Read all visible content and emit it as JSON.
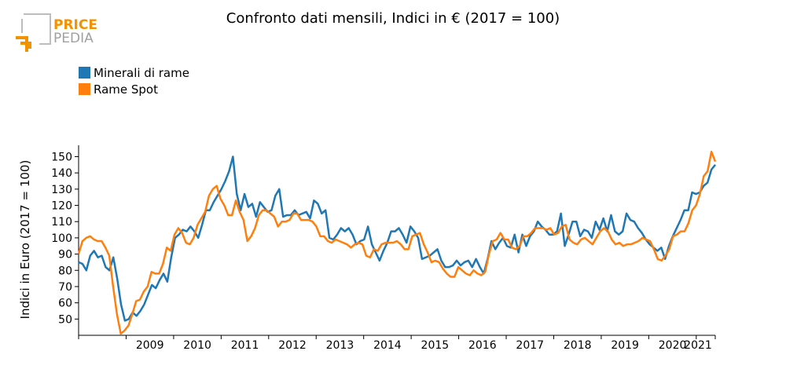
{
  "logo": {
    "line1": "PRICE",
    "line2": "PEDIA",
    "colors": {
      "orange": "#F39200",
      "gray": "#A0A0A0"
    }
  },
  "chart_data": {
    "type": "line",
    "title": "Confronto dati mensili, Indici in € (2017 = 100)",
    "ylabel": "Indici in Euro (2017 = 100)",
    "xlabel": "",
    "ylim": [
      40,
      157
    ],
    "xlim": [
      2008.0,
      2021.4
    ],
    "yticks": [
      50,
      60,
      70,
      80,
      90,
      100,
      110,
      120,
      130,
      140,
      150
    ],
    "xtick_labels": [
      "2009",
      "2010",
      "2011",
      "2012",
      "2013",
      "2014",
      "2015",
      "2016",
      "2017",
      "2018",
      "2019",
      "2020",
      "2021"
    ],
    "legend_position": "top-left",
    "x_start": "2008-01",
    "x_step": "1 month",
    "series": [
      {
        "name": "Minerali di rame",
        "color": "#1F77B4",
        "values": [
          85,
          84,
          80,
          89,
          92,
          88,
          89,
          82,
          80,
          88,
          75,
          59,
          49,
          50,
          54,
          52,
          55,
          59,
          65,
          71,
          69,
          74,
          78,
          73,
          88,
          100,
          102,
          105,
          104,
          107,
          104,
          100,
          108,
          117,
          117,
          122,
          126,
          130,
          135,
          141,
          150,
          127,
          117,
          127,
          119,
          121,
          113,
          122,
          119,
          116,
          117,
          126,
          130,
          113,
          114,
          114,
          117,
          114,
          115,
          116,
          112,
          123,
          121,
          115,
          117,
          100,
          99,
          102,
          106,
          104,
          106,
          102,
          96,
          98,
          99,
          107,
          96,
          91,
          86,
          92,
          97,
          104,
          104,
          106,
          102,
          97,
          107,
          104,
          100,
          87,
          88,
          89,
          91,
          93,
          86,
          82,
          82,
          83,
          86,
          83,
          85,
          86,
          82,
          87,
          82,
          78,
          87,
          98,
          93,
          97,
          100,
          95,
          94,
          102,
          91,
          102,
          95,
          101,
          104,
          110,
          107,
          105,
          102,
          102,
          104,
          115,
          95,
          102,
          110,
          110,
          101,
          105,
          104,
          100,
          110,
          105,
          112,
          104,
          114,
          104,
          102,
          104,
          115,
          111,
          110,
          106,
          103,
          99,
          96,
          94,
          92,
          94,
          87,
          95,
          101,
          106,
          111,
          117,
          117,
          128,
          127,
          128,
          132,
          134,
          142,
          145
        ],
        "dash": "solid"
      },
      {
        "name": "Rame Spot",
        "color": "#FF7F0E",
        "values": [
          90,
          98,
          100,
          101,
          99,
          98,
          98,
          94,
          89,
          70,
          53,
          41,
          43,
          46,
          53,
          61,
          62,
          67,
          70,
          79,
          78,
          78,
          84,
          94,
          92,
          102,
          106,
          103,
          97,
          96,
          100,
          108,
          112,
          116,
          126,
          130,
          132,
          124,
          120,
          114,
          114,
          123,
          116,
          111,
          98,
          101,
          106,
          114,
          117,
          117,
          115,
          113,
          107,
          110,
          110,
          111,
          115,
          115,
          111,
          111,
          111,
          110,
          107,
          101,
          101,
          98,
          97,
          99,
          98,
          97,
          96,
          94,
          96,
          97,
          96,
          89,
          88,
          93,
          92,
          96,
          97,
          97,
          97,
          98,
          96,
          93,
          93,
          101,
          102,
          103,
          96,
          91,
          85,
          86,
          85,
          81,
          78,
          76,
          76,
          82,
          80,
          78,
          77,
          80,
          78,
          77,
          79,
          90,
          98,
          99,
          103,
          99,
          99,
          94,
          93,
          95,
          101,
          101,
          103,
          106,
          106,
          106,
          105,
          106,
          102,
          103,
          107,
          108,
          99,
          97,
          96,
          99,
          100,
          98,
          96,
          100,
          104,
          106,
          104,
          99,
          96,
          97,
          95,
          96,
          96,
          97,
          98,
          100,
          99,
          98,
          93,
          87,
          86,
          89,
          93,
          101,
          102,
          104,
          104,
          109,
          117,
          120,
          127,
          138,
          141,
          153,
          147
        ],
        "dash": "solid"
      }
    ]
  }
}
